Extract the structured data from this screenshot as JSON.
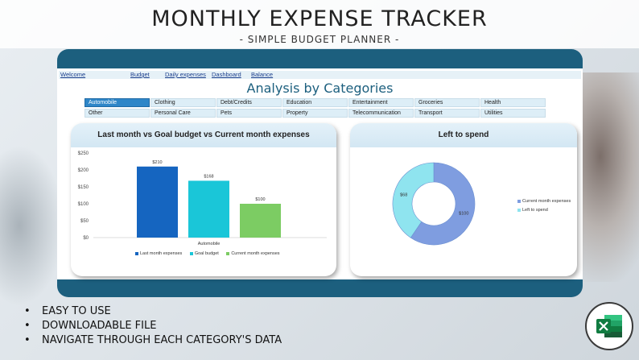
{
  "header": {
    "title": "MONTHLY EXPENSE TRACKER",
    "subtitle": "- SIMPLE BUDGET PLANNER -"
  },
  "nav": {
    "items": [
      {
        "label": "Welcome"
      },
      {
        "label": "Budget"
      },
      {
        "label": "Daily expenses"
      },
      {
        "label": "Dashboard"
      },
      {
        "label": "Balance"
      }
    ]
  },
  "sheet": {
    "heading": "Analysis by Categories",
    "categories": [
      {
        "label": "Automobile",
        "active": true
      },
      {
        "label": "Clothing"
      },
      {
        "label": "Debt/Credits"
      },
      {
        "label": "Education"
      },
      {
        "label": "Entertainment"
      },
      {
        "label": "Groceries"
      },
      {
        "label": "Health"
      },
      {
        "label": "Other"
      },
      {
        "label": "Personal Care"
      },
      {
        "label": "Pets"
      },
      {
        "label": "Property"
      },
      {
        "label": "Telecommunication"
      },
      {
        "label": "Transport"
      },
      {
        "label": "Utilities"
      }
    ]
  },
  "colors": {
    "panel": "#1c5f7e",
    "last_month": "#1565c0",
    "goal_budget": "#1ac6d8",
    "current_month": "#7ccc63",
    "donut_current": "#7f9de0",
    "donut_left": "#8fe4ef"
  },
  "chart_data": [
    {
      "type": "bar",
      "title": "Last month vs Goal budget vs Current month expenses",
      "categories": [
        "Automobile"
      ],
      "series": [
        {
          "name": "Last month expenses",
          "values": [
            210
          ],
          "label": "$210"
        },
        {
          "name": "Goal budget",
          "values": [
            168
          ],
          "label": "$168"
        },
        {
          "name": "Current month expenses",
          "values": [
            100
          ],
          "label": "$100"
        }
      ],
      "ylim": [
        0,
        250
      ],
      "yticks": [
        "$0",
        "$50",
        "$100",
        "$150",
        "$200",
        "$250"
      ],
      "legend": "bottom"
    },
    {
      "type": "pie",
      "title": "Left to spend",
      "donut": true,
      "slices": [
        {
          "name": "Current month expenses",
          "value": 100,
          "label": "$100"
        },
        {
          "name": "Left to spend",
          "value": 68,
          "label": "$68"
        }
      ],
      "legend": "right"
    }
  ],
  "bullets": [
    "EASY TO USE",
    "DOWNLOADABLE FILE",
    "NAVIGATE THROUGH EACH CATEGORY'S DATA"
  ],
  "icons": {
    "excel": "excel-icon"
  }
}
